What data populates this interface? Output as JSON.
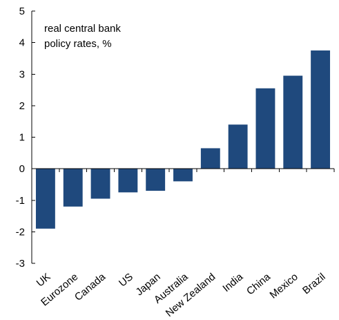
{
  "chart_data": {
    "type": "bar",
    "annotation": [
      "real central bank",
      "policy rates, %"
    ],
    "categories": [
      "UK",
      "Eurozone",
      "Canada",
      "US",
      "Japan",
      "Australia",
      "New Zealand",
      "India",
      "China",
      "Mexico",
      "Brazil"
    ],
    "values": [
      -1.9,
      -1.2,
      -0.95,
      -0.75,
      -0.7,
      -0.4,
      0.65,
      1.4,
      2.55,
      2.95,
      3.75
    ],
    "ylim": [
      -3,
      5
    ],
    "yticks": [
      -3,
      -2,
      -1,
      0,
      1,
      2,
      3,
      4,
      5
    ],
    "grid": false,
    "bar_color": "#1f497d",
    "axis_color": "#000000"
  }
}
